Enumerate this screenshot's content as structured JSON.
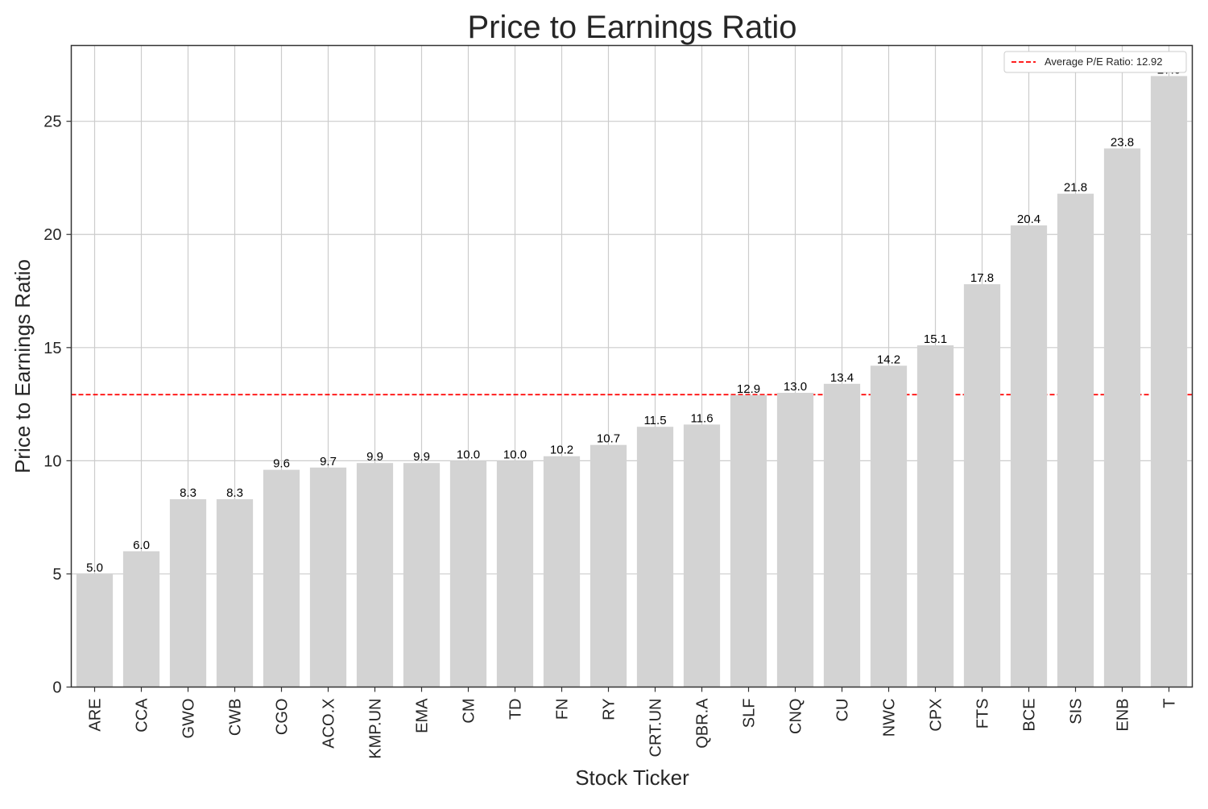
{
  "chart_data": {
    "type": "bar",
    "title": "Price to Earnings Ratio",
    "xlabel": "Stock Ticker",
    "ylabel": "Price to Earnings Ratio",
    "ylim": [
      0,
      28.35
    ],
    "yticks": [
      0,
      5,
      10,
      15,
      20,
      25
    ],
    "grid": true,
    "legend_position": "top-right",
    "categories": [
      "ARE",
      "CCA",
      "GWO",
      "CWB",
      "CGO",
      "ACO.X",
      "KMP.UN",
      "EMA",
      "CM",
      "TD",
      "FN",
      "RY",
      "CRT.UN",
      "QBR.A",
      "SLF",
      "CNQ",
      "CU",
      "NWC",
      "CPX",
      "FTS",
      "BCE",
      "SIS",
      "ENB",
      "T"
    ],
    "values": [
      5.0,
      6.0,
      8.3,
      8.3,
      9.6,
      9.7,
      9.9,
      9.9,
      10.0,
      10.0,
      10.2,
      10.7,
      11.5,
      11.6,
      12.9,
      13.0,
      13.4,
      14.2,
      15.1,
      17.8,
      20.4,
      21.8,
      23.8,
      27.0
    ],
    "value_labels": [
      "5.0",
      "6.0",
      "8.3",
      "8.3",
      "9.6",
      "9.7",
      "9.9",
      "9.9",
      "10.0",
      "10.0",
      "10.2",
      "10.7",
      "11.5",
      "11.6",
      "12.9",
      "13.0",
      "13.4",
      "14.2",
      "15.1",
      "17.8",
      "20.4",
      "21.8",
      "23.8",
      "27.0"
    ],
    "average_line": {
      "value": 12.92,
      "label": "Average P/E Ratio: 12.92"
    },
    "colors": {
      "bar": "#d3d3d3",
      "average_line": "#ff0000",
      "grid": "#cccccc",
      "axis": "#333333",
      "text": "#262626"
    }
  }
}
